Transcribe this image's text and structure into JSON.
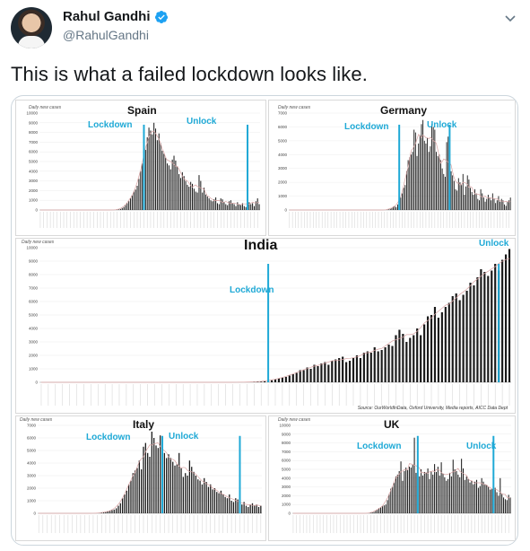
{
  "user": {
    "display_name": "Rahul Gandhi",
    "handle": "@RahulGandhi",
    "verified_icon": "verified-badge-icon",
    "menu_icon": "chevron-down-icon"
  },
  "tweet": {
    "text": "This is what a failed lockdown looks like."
  },
  "colors": {
    "annotation": "#1fa9d6",
    "bars": "#1a1a1a",
    "avg_line": "#d9a3a3"
  },
  "charts": {
    "spain": {
      "title": "Spain",
      "ylabel": "Daily new cases",
      "yticks": [
        "10000",
        "9000",
        "8000",
        "7000",
        "6000",
        "5000",
        "4000",
        "3000",
        "2000",
        "1000",
        "0"
      ],
      "lockdown": "Lockdown",
      "unlock": "Unlock"
    },
    "germany": {
      "title": "Germany",
      "ylabel": "Daily new cases",
      "yticks": [
        "7000",
        "6000",
        "5000",
        "4000",
        "3000",
        "2000",
        "1000",
        "0"
      ],
      "lockdown": "Lockdown",
      "unlock": "Unlock"
    },
    "india": {
      "title": "India",
      "ylabel": "Daily new cases",
      "yticks": [
        "10000",
        "9000",
        "8000",
        "7000",
        "6000",
        "5000",
        "4000",
        "3000",
        "2000",
        "1000",
        "0"
      ],
      "lockdown": "Lockdown",
      "unlock": "Unlock",
      "source": "Source: OurWorldInData, Oxford University, Media reports, AICC Data Dept"
    },
    "italy": {
      "title": "Italy",
      "ylabel": "Daily new cases",
      "yticks": [
        "7000",
        "6000",
        "5000",
        "4000",
        "3000",
        "2000",
        "1000",
        "0"
      ],
      "lockdown": "Lockdown",
      "unlock": "Unlock"
    },
    "uk": {
      "title": "UK",
      "ylabel": "Daily new cases",
      "yticks": [
        "10000",
        "9000",
        "8000",
        "7000",
        "6000",
        "5000",
        "4000",
        "3000",
        "2000",
        "1000",
        "0"
      ],
      "lockdown": "Lockdown",
      "unlock": "Unlock"
    }
  },
  "chart_data": [
    {
      "type": "bar",
      "title": "Spain",
      "ylabel": "Daily new cases",
      "ylim": [
        0,
        10000
      ],
      "values": [
        0,
        0,
        0,
        0,
        0,
        0,
        0,
        0,
        0,
        0,
        0,
        0,
        0,
        0,
        0,
        0,
        0,
        0,
        0,
        0,
        0,
        0,
        0,
        0,
        0,
        0,
        0,
        0,
        0,
        0,
        0,
        0,
        0,
        0,
        0,
        0,
        0,
        0,
        0,
        0,
        0,
        0,
        0,
        0,
        0,
        20,
        30,
        50,
        100,
        200,
        300,
        500,
        700,
        900,
        1200,
        1500,
        1900,
        2100,
        2500,
        3200,
        4000,
        4800,
        5800,
        6200,
        7500,
        8500,
        8200,
        7800,
        9000,
        8400,
        7200,
        7900,
        6900,
        6100,
        5800,
        5400,
        4800,
        4600,
        4200,
        5200,
        5600,
        5100,
        4500,
        3700,
        3300,
        3900,
        3500,
        3000,
        2600,
        2400,
        2900,
        2700,
        2200,
        1900,
        1800,
        3600,
        3000,
        1800,
        2300,
        1600,
        1400,
        1200,
        1000,
        900,
        1100,
        1300,
        700,
        600,
        1200,
        1100,
        800,
        600,
        500,
        900,
        1000,
        700,
        600,
        400,
        800,
        600,
        500,
        700,
        400,
        300,
        1100,
        800,
        600,
        700,
        400,
        900,
        1200,
        600
      ],
      "lockdown_index": 62,
      "unlock_index": 124
    },
    {
      "type": "bar",
      "title": "Germany",
      "ylabel": "Daily new cases",
      "ylim": [
        0,
        7000
      ],
      "values": [
        0,
        0,
        0,
        0,
        0,
        0,
        0,
        0,
        0,
        0,
        0,
        0,
        0,
        0,
        0,
        0,
        0,
        0,
        0,
        0,
        0,
        0,
        0,
        0,
        0,
        0,
        0,
        0,
        0,
        0,
        0,
        0,
        0,
        0,
        0,
        0,
        0,
        0,
        0,
        0,
        0,
        0,
        0,
        0,
        0,
        0,
        0,
        0,
        0,
        0,
        0,
        0,
        0,
        0,
        0,
        0,
        0,
        0,
        0,
        0,
        0,
        0,
        0,
        0,
        0,
        0,
        20,
        40,
        80,
        150,
        250,
        300,
        200,
        400,
        500,
        900,
        1200,
        1600,
        1800,
        2800,
        3600,
        3800,
        4000,
        4200,
        5800,
        5600,
        3900,
        4800,
        5400,
        6200,
        6500,
        5000,
        4800,
        5200,
        4200,
        4600,
        6200,
        6000,
        5800,
        4200,
        3900,
        4000,
        3600,
        3000,
        2600,
        2400,
        4900,
        5300,
        3700,
        2800,
        2500,
        2100,
        1500,
        1400,
        2300,
        2000,
        1800,
        2600,
        1100,
        1700,
        2500,
        2200,
        1600,
        1300,
        1100,
        1500,
        1200,
        800,
        700,
        1500,
        1200,
        900,
        600,
        800,
        1100,
        900,
        700,
        1200,
        800,
        500,
        700,
        1000,
        600,
        800,
        700,
        400,
        300,
        600,
        700,
        900
      ],
      "lockdown_index": 74,
      "unlock_index": 108
    },
    {
      "type": "bar",
      "title": "India",
      "ylabel": "Daily new cases",
      "ylim": [
        0,
        10000
      ],
      "values": [
        0,
        0,
        0,
        0,
        0,
        0,
        0,
        0,
        0,
        0,
        0,
        0,
        0,
        0,
        0,
        0,
        0,
        0,
        0,
        0,
        0,
        0,
        0,
        0,
        0,
        0,
        0,
        0,
        0,
        0,
        0,
        0,
        0,
        0,
        0,
        0,
        0,
        0,
        0,
        0,
        0,
        0,
        0,
        0,
        0,
        0,
        0,
        0,
        0,
        0,
        0,
        0,
        0,
        0,
        0,
        0,
        5,
        10,
        15,
        20,
        30,
        40,
        60,
        80,
        100,
        150,
        230,
        300,
        350,
        400,
        500,
        600,
        700,
        900,
        900,
        1100,
        1000,
        1300,
        1200,
        1400,
        1500,
        1300,
        1600,
        1700,
        1800,
        1900,
        1500,
        1600,
        1800,
        2000,
        1800,
        2200,
        2300,
        2200,
        2600,
        2300,
        2400,
        2600,
        2800,
        2700,
        3500,
        3900,
        3600,
        3000,
        3300,
        3500,
        4000,
        3500,
        4300,
        4900,
        5000,
        5600,
        4800,
        5200,
        5600,
        5900,
        6400,
        6600,
        6100,
        6500,
        6800,
        7400,
        7200,
        7800,
        8400,
        8200,
        7900,
        8300,
        8800,
        8300,
        9100,
        9500,
        9900
      ],
      "lockdown_index": 64,
      "unlock_index": 129
    },
    {
      "type": "bar",
      "title": "Italy",
      "ylabel": "Daily new cases",
      "ylim": [
        0,
        7000
      ],
      "values": [
        0,
        0,
        0,
        0,
        0,
        0,
        0,
        0,
        0,
        0,
        0,
        0,
        0,
        0,
        0,
        0,
        0,
        0,
        0,
        0,
        0,
        0,
        0,
        0,
        0,
        0,
        0,
        0,
        0,
        20,
        60,
        80,
        100,
        150,
        200,
        250,
        300,
        400,
        600,
        800,
        1200,
        1500,
        1800,
        2300,
        2600,
        3200,
        3400,
        3600,
        4200,
        3500,
        5300,
        5600,
        4800,
        4500,
        6500,
        6000,
        5400,
        5200,
        6200,
        5200,
        4800,
        4400,
        4700,
        4400,
        4100,
        3800,
        3900,
        4800,
        3600,
        2900,
        3200,
        3000,
        4200,
        3700,
        3300,
        3000,
        2700,
        2600,
        2300,
        2800,
        2500,
        2100,
        2300,
        1900,
        2000,
        1700,
        1600,
        1800,
        1500,
        1300,
        1200,
        1500,
        1000,
        900,
        1200,
        1100,
        800,
        700,
        900,
        600,
        500,
        700,
        800,
        600,
        700,
        500,
        600
      ],
      "lockdown_index": 59,
      "unlock_index": 96
    },
    {
      "type": "bar",
      "title": "UK",
      "ylabel": "Daily new cases",
      "ylim": [
        0,
        10000
      ],
      "values": [
        0,
        0,
        0,
        0,
        0,
        0,
        0,
        0,
        0,
        0,
        0,
        0,
        0,
        0,
        0,
        0,
        0,
        0,
        0,
        0,
        0,
        0,
        0,
        0,
        0,
        0,
        0,
        0,
        0,
        0,
        0,
        0,
        0,
        0,
        0,
        0,
        0,
        0,
        0,
        0,
        0,
        0,
        0,
        0,
        0,
        20,
        50,
        100,
        150,
        300,
        400,
        600,
        700,
        800,
        900,
        1000,
        1500,
        2200,
        2800,
        3000,
        3500,
        4200,
        4400,
        4800,
        5900,
        3700,
        4800,
        5200,
        4900,
        5300,
        5200,
        5500,
        8600,
        4600,
        4800,
        4200,
        5000,
        4300,
        4700,
        4600,
        5100,
        3900,
        4800,
        4400,
        5600,
        4700,
        5300,
        4300,
        5800,
        4500,
        4100,
        3700,
        3900,
        4600,
        4200,
        6100,
        5000,
        4800,
        4400,
        4100,
        6200,
        5100,
        3800,
        4200,
        3900,
        3500,
        3700,
        3300,
        3600,
        3800,
        2900,
        3100,
        4000,
        3600,
        3300,
        3200,
        3000,
        2700,
        2800,
        2500,
        2900,
        2400,
        2000,
        4000,
        2200,
        1800,
        1600,
        1500,
        2100,
        1800
      ],
      "lockdown_index": 74,
      "unlock_index": 119
    }
  ]
}
